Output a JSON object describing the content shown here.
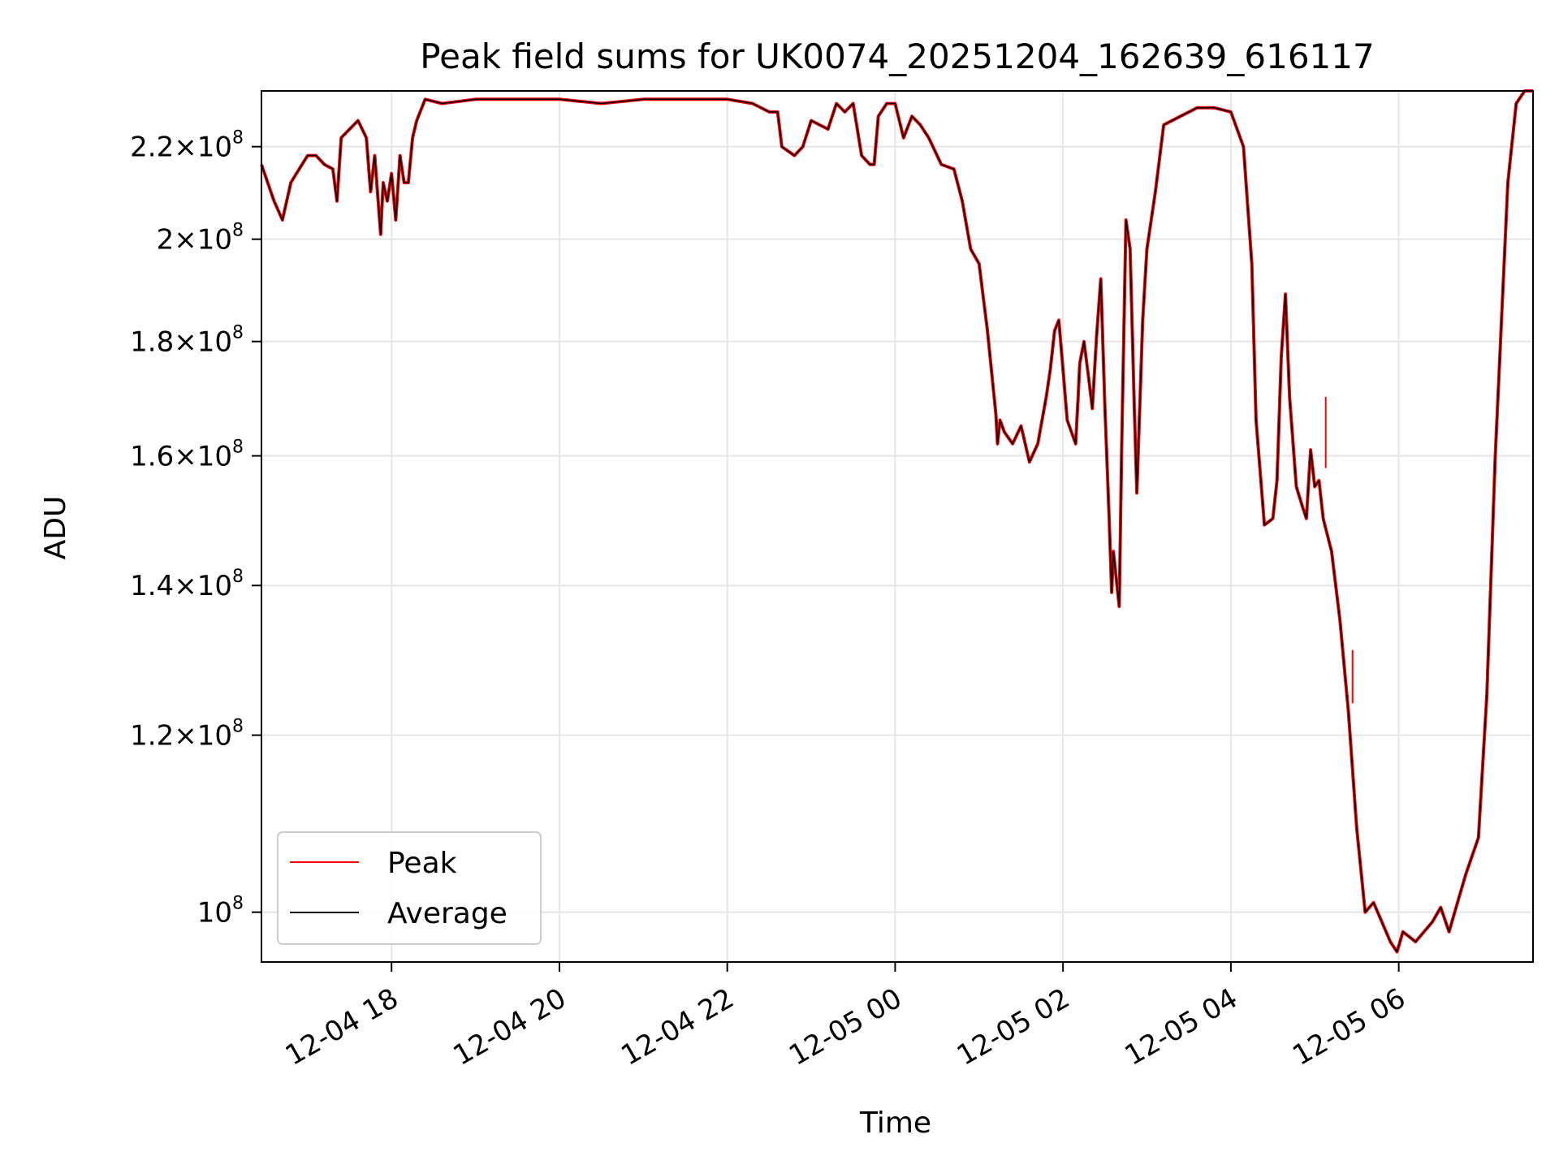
{
  "chart_data": {
    "type": "line",
    "title": "Peak field sums for UK0074_20251204_162639_616117",
    "xlabel": "Time",
    "ylabel": "ADU",
    "x_start": "2025-12-04 16:26",
    "x_end": "2025-12-05 07:36",
    "xlim_hours": [
      16.45,
      31.6
    ],
    "x_ticks": [
      {
        "t": 18,
        "label": "12-04 18"
      },
      {
        "t": 20,
        "label": "12-04 20"
      },
      {
        "t": 22,
        "label": "12-04 22"
      },
      {
        "t": 24,
        "label": "12-05 00"
      },
      {
        "t": 26,
        "label": "12-05 02"
      },
      {
        "t": 28,
        "label": "12-05 04"
      },
      {
        "t": 30,
        "label": "12-05 06"
      }
    ],
    "y_scale": "log",
    "ylim": [
      95000000,
      233000000
    ],
    "y_ticks": [
      {
        "v": 100000000,
        "mant": "",
        "exp": "8",
        "base": "10"
      },
      {
        "v": 120000000,
        "mant": "1.2",
        "exp": "8",
        "base": "10"
      },
      {
        "v": 140000000,
        "mant": "1.4",
        "exp": "8",
        "base": "10"
      },
      {
        "v": 160000000,
        "mant": "1.6",
        "exp": "8",
        "base": "10"
      },
      {
        "v": 180000000,
        "mant": "1.8",
        "exp": "8",
        "base": "10"
      },
      {
        "v": 200000000,
        "mant": "2",
        "exp": "8",
        "base": "10"
      },
      {
        "v": 220000000,
        "mant": "2.2",
        "exp": "8",
        "base": "10"
      }
    ],
    "grid": true,
    "legend_position": "lower-left",
    "series": [
      {
        "name": "Peak",
        "color": "#ff0000"
      },
      {
        "name": "Average",
        "color": "#000000"
      }
    ],
    "points": [
      [
        16.45,
        216
      ],
      [
        16.6,
        208
      ],
      [
        16.65,
        206
      ],
      [
        16.7,
        204
      ],
      [
        16.8,
        212
      ],
      [
        16.9,
        215
      ],
      [
        17.0,
        218
      ],
      [
        17.1,
        218
      ],
      [
        17.2,
        216
      ],
      [
        17.3,
        215
      ],
      [
        17.35,
        208
      ],
      [
        17.4,
        222
      ],
      [
        17.5,
        224
      ],
      [
        17.6,
        226
      ],
      [
        17.7,
        222
      ],
      [
        17.75,
        210
      ],
      [
        17.8,
        218
      ],
      [
        17.87,
        201
      ],
      [
        17.9,
        212
      ],
      [
        17.95,
        208
      ],
      [
        18.0,
        214
      ],
      [
        18.05,
        204
      ],
      [
        18.1,
        218
      ],
      [
        18.15,
        212
      ],
      [
        18.2,
        212
      ],
      [
        18.25,
        222
      ],
      [
        18.3,
        226
      ],
      [
        18.4,
        231
      ],
      [
        18.6,
        230
      ],
      [
        19.0,
        231
      ],
      [
        19.5,
        231
      ],
      [
        20.0,
        231
      ],
      [
        20.5,
        230
      ],
      [
        21.0,
        231
      ],
      [
        21.5,
        231
      ],
      [
        22.0,
        231
      ],
      [
        22.3,
        230
      ],
      [
        22.5,
        228
      ],
      [
        22.6,
        228
      ],
      [
        22.65,
        220
      ],
      [
        22.8,
        218
      ],
      [
        22.9,
        220
      ],
      [
        23.0,
        226
      ],
      [
        23.2,
        224
      ],
      [
        23.3,
        230
      ],
      [
        23.4,
        228
      ],
      [
        23.5,
        230
      ],
      [
        23.6,
        218
      ],
      [
        23.7,
        216
      ],
      [
        23.75,
        216
      ],
      [
        23.8,
        227
      ],
      [
        23.9,
        230
      ],
      [
        24.0,
        230
      ],
      [
        24.1,
        222
      ],
      [
        24.2,
        227
      ],
      [
        24.3,
        225
      ],
      [
        24.4,
        222
      ],
      [
        24.5,
        218
      ],
      [
        24.55,
        216
      ],
      [
        24.7,
        215
      ],
      [
        24.8,
        208
      ],
      [
        24.9,
        198
      ],
      [
        25.0,
        195
      ],
      [
        25.1,
        182
      ],
      [
        25.2,
        167
      ],
      [
        25.22,
        162
      ],
      [
        25.25,
        166
      ],
      [
        25.3,
        164
      ],
      [
        25.4,
        162
      ],
      [
        25.5,
        165
      ],
      [
        25.6,
        159
      ],
      [
        25.7,
        162
      ],
      [
        25.8,
        170
      ],
      [
        25.85,
        175
      ],
      [
        25.9,
        182
      ],
      [
        25.95,
        184
      ],
      [
        26.0,
        175
      ],
      [
        26.05,
        166
      ],
      [
        26.1,
        164
      ],
      [
        26.15,
        162
      ],
      [
        26.18,
        170
      ],
      [
        26.2,
        176
      ],
      [
        26.25,
        180
      ],
      [
        26.3,
        174
      ],
      [
        26.35,
        168
      ],
      [
        26.4,
        181
      ],
      [
        26.45,
        192
      ],
      [
        26.5,
        168
      ],
      [
        26.55,
        150
      ],
      [
        26.58,
        139
      ],
      [
        26.6,
        145
      ],
      [
        26.67,
        137
      ],
      [
        26.7,
        162
      ],
      [
        26.75,
        204
      ],
      [
        26.8,
        198
      ],
      [
        26.85,
        168
      ],
      [
        26.88,
        154
      ],
      [
        26.95,
        184
      ],
      [
        27.0,
        198
      ],
      [
        27.1,
        210
      ],
      [
        27.2,
        225
      ],
      [
        27.4,
        227
      ],
      [
        27.6,
        229
      ],
      [
        27.8,
        229
      ],
      [
        28.0,
        228
      ],
      [
        28.15,
        220
      ],
      [
        28.25,
        195
      ],
      [
        28.3,
        166
      ],
      [
        28.4,
        149
      ],
      [
        28.5,
        150
      ],
      [
        28.55,
        156
      ],
      [
        28.6,
        177
      ],
      [
        28.65,
        189
      ],
      [
        28.7,
        170
      ],
      [
        28.78,
        155
      ],
      [
        28.85,
        152
      ],
      [
        28.9,
        150
      ],
      [
        28.95,
        161
      ],
      [
        29.0,
        155
      ],
      [
        29.05,
        156
      ],
      [
        29.1,
        150
      ],
      [
        29.2,
        145
      ],
      [
        29.3,
        135
      ],
      [
        29.4,
        123
      ],
      [
        29.5,
        109
      ],
      [
        29.6,
        100
      ],
      [
        29.7,
        101
      ],
      [
        29.8,
        99
      ],
      [
        29.9,
        97
      ],
      [
        29.98,
        96
      ],
      [
        30.05,
        98
      ],
      [
        30.2,
        97
      ],
      [
        30.4,
        99
      ],
      [
        30.5,
        100.5
      ],
      [
        30.6,
        98
      ],
      [
        30.7,
        101
      ],
      [
        30.8,
        104
      ],
      [
        30.95,
        108
      ],
      [
        31.05,
        125
      ],
      [
        31.15,
        160
      ],
      [
        31.3,
        212
      ],
      [
        31.4,
        230
      ],
      [
        31.5,
        233
      ],
      [
        31.6,
        233
      ]
    ],
    "peak_spikes": [
      [
        29.13,
        158,
        170
      ],
      [
        29.45,
        124,
        131
      ]
    ]
  }
}
